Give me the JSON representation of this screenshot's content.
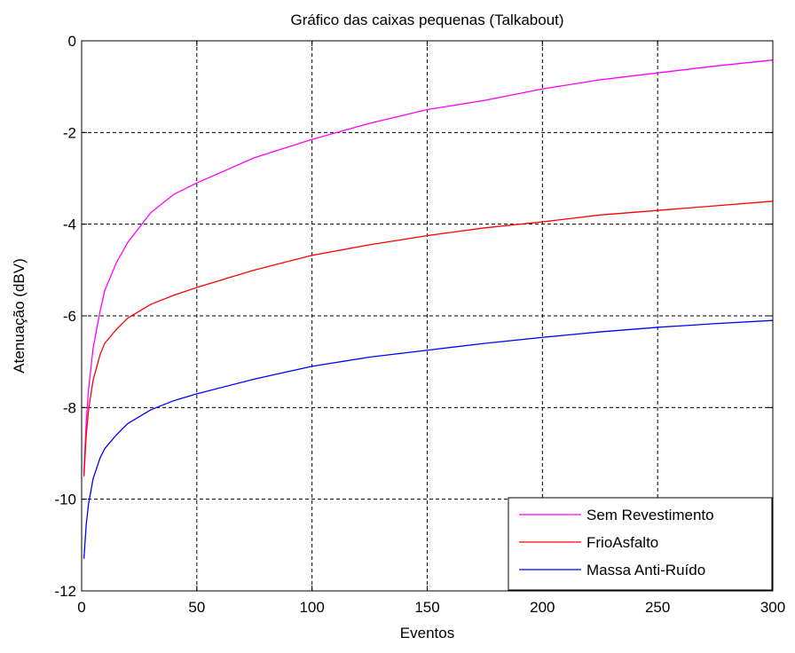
{
  "chart_data": {
    "type": "line",
    "title": "Gráfico das caixas pequenas (Talkabout)",
    "xlabel": "Eventos",
    "ylabel": "Atenuação (dBV)",
    "xlim": [
      0,
      300
    ],
    "ylim": [
      -12,
      0
    ],
    "xticks": [
      0,
      50,
      100,
      150,
      200,
      250,
      300
    ],
    "yticks": [
      -12,
      -10,
      -8,
      -6,
      -4,
      -2,
      0
    ],
    "xtick_labels": [
      "0",
      "50",
      "100",
      "150",
      "200",
      "250",
      "300"
    ],
    "ytick_labels": [
      "-12",
      "-10",
      "-8",
      "-6",
      "-4",
      "-2",
      "0"
    ],
    "grid": true,
    "legend_position": "bottom-right",
    "series": [
      {
        "name": "Sem Revestimento",
        "color": "#ff00ff",
        "x": [
          1,
          2,
          3,
          5,
          8,
          10,
          15,
          20,
          30,
          40,
          50,
          75,
          100,
          125,
          150,
          175,
          200,
          225,
          250,
          275,
          300
        ],
        "y": [
          -9.45,
          -8.3,
          -7.6,
          -6.7,
          -5.9,
          -5.45,
          -4.85,
          -4.4,
          -3.75,
          -3.35,
          -3.1,
          -2.55,
          -2.15,
          -1.8,
          -1.5,
          -1.3,
          -1.05,
          -0.85,
          -0.7,
          -0.55,
          -0.42
        ]
      },
      {
        "name": "FrioAsfalto",
        "color": "#ff0000",
        "x": [
          1,
          2,
          3,
          5,
          8,
          10,
          15,
          20,
          30,
          40,
          50,
          75,
          100,
          125,
          150,
          175,
          200,
          225,
          250,
          275,
          300
        ],
        "y": [
          -9.5,
          -8.6,
          -8.05,
          -7.4,
          -6.85,
          -6.6,
          -6.3,
          -6.05,
          -5.75,
          -5.55,
          -5.38,
          -5.0,
          -4.68,
          -4.45,
          -4.25,
          -4.08,
          -3.95,
          -3.8,
          -3.7,
          -3.6,
          -3.5
        ]
      },
      {
        "name": "Massa Anti-Ruído",
        "color": "#0000ff",
        "x": [
          1,
          2,
          3,
          5,
          8,
          10,
          15,
          20,
          30,
          40,
          50,
          75,
          100,
          125,
          150,
          175,
          200,
          225,
          250,
          275,
          300
        ],
        "y": [
          -11.3,
          -10.55,
          -10.1,
          -9.55,
          -9.1,
          -8.9,
          -8.6,
          -8.35,
          -8.05,
          -7.85,
          -7.7,
          -7.38,
          -7.1,
          -6.9,
          -6.75,
          -6.6,
          -6.47,
          -6.35,
          -6.25,
          -6.17,
          -6.1
        ]
      }
    ]
  }
}
